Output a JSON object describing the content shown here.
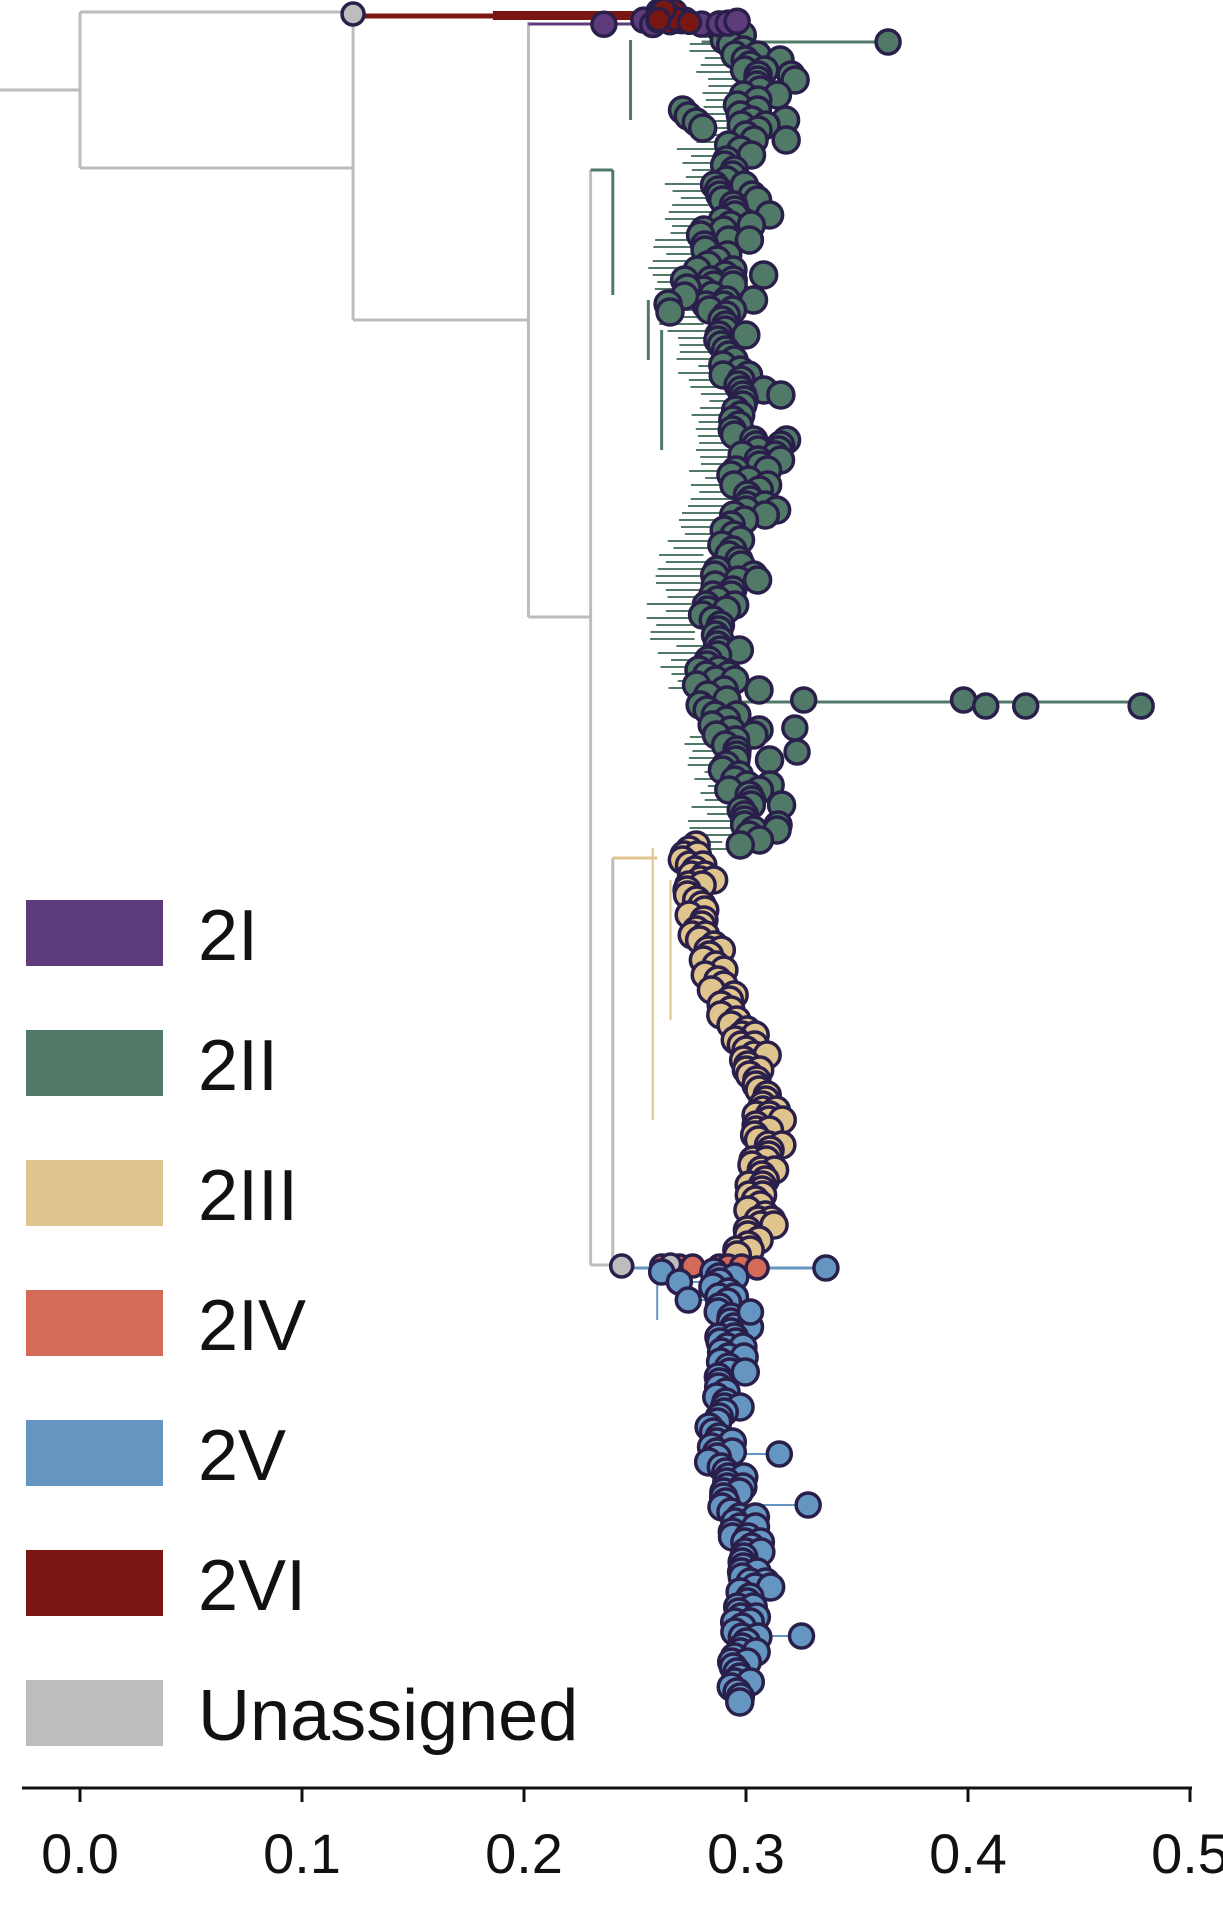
{
  "chart_data": {
    "type": "phylogenetic-tree",
    "xlabel": "",
    "ylabel": "",
    "xlim": [
      0.0,
      0.5
    ],
    "x_ticks": [
      "0.0",
      "0.1",
      "0.2",
      "0.3",
      "0.4",
      "0.5"
    ],
    "x_tick_values": [
      0.0,
      0.1,
      0.2,
      0.3,
      0.4,
      0.5
    ],
    "legend_position": "left",
    "legend": [
      {
        "label": "2I",
        "color": "#5e3c7b"
      },
      {
        "label": "2II",
        "color": "#507a67"
      },
      {
        "label": "2III",
        "color": "#e0c48d"
      },
      {
        "label": "2IV",
        "color": "#d36b58"
      },
      {
        "label": "2V",
        "color": "#6596c2"
      },
      {
        "label": "2VI",
        "color": "#7b1713"
      },
      {
        "label": "Unassigned",
        "color": "#bdbdbd"
      }
    ],
    "clades": [
      {
        "name": "2I",
        "tip_distance_range": [
          0.24,
          0.3
        ]
      },
      {
        "name": "2II",
        "tip_distance_range": [
          0.27,
          0.48
        ]
      },
      {
        "name": "2III",
        "tip_distance_range": [
          0.27,
          0.31
        ]
      },
      {
        "name": "2IV",
        "tip_distance_range": [
          0.27,
          0.31
        ]
      },
      {
        "name": "2V",
        "tip_distance_range": [
          0.27,
          0.34
        ]
      },
      {
        "name": "2VI",
        "tip_distance_range": [
          0.26,
          0.28
        ]
      }
    ],
    "grid": false
  },
  "colors": {
    "axis": "#111111",
    "tip_outline": "#2a1f4a",
    "backbone": "#c4c4c4"
  }
}
